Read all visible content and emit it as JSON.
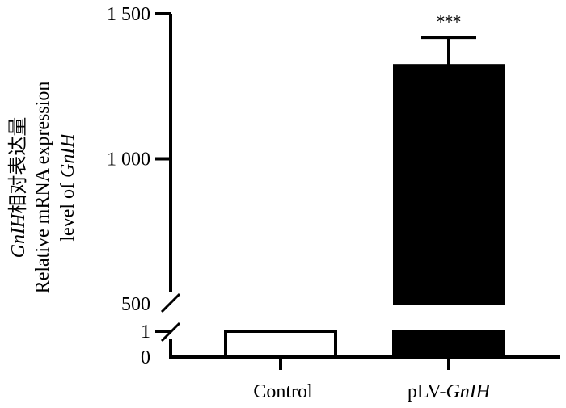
{
  "chart_data": {
    "type": "bar",
    "categories": [
      "Control",
      "pLV-GnIH"
    ],
    "category_parts": [
      [
        {
          "text": "Control",
          "italic": false
        }
      ],
      [
        {
          "text": "pLV-",
          "italic": false
        },
        {
          "text": "GnIH",
          "italic": true
        }
      ]
    ],
    "values": [
      1,
      1324
    ],
    "error": [
      0,
      95
    ],
    "significance": [
      "",
      "***"
    ],
    "ylabel_lines": [
      [
        {
          "text": "GnIH",
          "italic": true
        },
        {
          "text": "相对表达量",
          "italic": false
        }
      ],
      [
        {
          "text": "Relative mRNA expression",
          "italic": false
        }
      ],
      [
        {
          "text": "level of ",
          "italic": false
        },
        {
          "text": "GnIH",
          "italic": true
        }
      ]
    ],
    "y_axis": {
      "segments": [
        {
          "range": [
            0,
            1
          ],
          "ticks": [
            0,
            1
          ],
          "tick_labels": [
            "0",
            "1"
          ]
        },
        {
          "range": [
            500,
            1500
          ],
          "ticks": [
            500,
            1000,
            1500
          ],
          "tick_labels": [
            "500",
            "1 000",
            "1 500"
          ]
        }
      ],
      "broken": true
    },
    "bar_fills": [
      "#ffffff",
      "#000000"
    ],
    "bar_stroke": "#000000",
    "grid": false,
    "legend": "none"
  }
}
